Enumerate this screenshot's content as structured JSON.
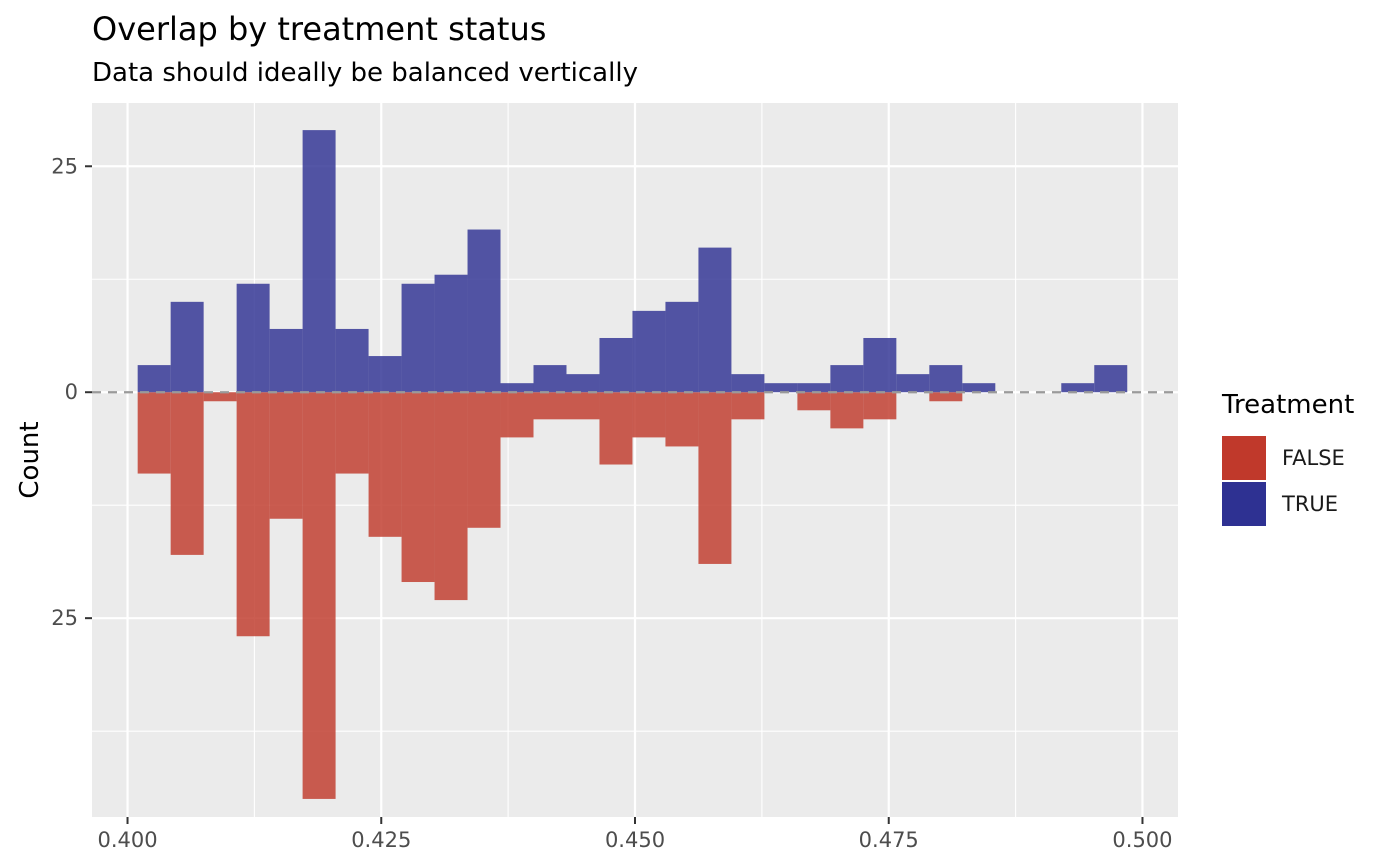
{
  "chart_data": {
    "type": "bar",
    "title": "Overlap by treatment status",
    "subtitle": "Data should ideally be balanced vertically",
    "xlabel": "",
    "ylabel": "Count",
    "xlim": [
      0.3965,
      0.5035
    ],
    "ylim": [
      -47,
      32
    ],
    "x_ticks": [
      0.4,
      0.425,
      0.45,
      0.475,
      0.5
    ],
    "x_tick_labels": [
      "0.400",
      "0.425",
      "0.450",
      "0.475",
      "0.500"
    ],
    "y_ticks": [
      25,
      0,
      -25
    ],
    "y_tick_labels": [
      "25",
      "0",
      "25"
    ],
    "grid": true,
    "reference_line": {
      "y": 0,
      "style": "dashed"
    },
    "bin_width": 0.00325,
    "bin_starts": [
      0.401,
      0.40425,
      0.4075,
      0.41075,
      0.414,
      0.41725,
      0.4205,
      0.42375,
      0.427,
      0.43025,
      0.4335,
      0.43675,
      0.44,
      0.44325,
      0.4465,
      0.44975,
      0.453,
      0.45625,
      0.4595,
      0.46275,
      0.466,
      0.46925,
      0.4725,
      0.47575,
      0.479,
      0.48225,
      0.4855,
      0.48875,
      0.492,
      0.49525
    ],
    "series": [
      {
        "name": "FALSE",
        "color": "#c0392b",
        "values": [
          -9,
          -18,
          -1,
          -27,
          -14,
          -45,
          -9,
          -16,
          -21,
          -23,
          -15,
          -5,
          -3,
          -3,
          -8,
          -5,
          -6,
          -19,
          -3,
          0,
          -2,
          -4,
          -3,
          0,
          -1,
          0,
          0,
          0,
          0,
          0
        ]
      },
      {
        "name": "TRUE",
        "color": "#2e3192",
        "values": [
          3,
          10,
          0,
          12,
          7,
          29,
          7,
          4,
          12,
          13,
          18,
          1,
          3,
          2,
          6,
          9,
          10,
          16,
          2,
          1,
          1,
          3,
          6,
          2,
          3,
          1,
          0,
          0,
          1,
          3
        ]
      }
    ],
    "legend": {
      "title": "Treatment",
      "position": "right"
    }
  },
  "colors": {
    "panel_background": "#ebebeb",
    "grid_major": "#ffffff",
    "false_fill": "#c0392b",
    "true_fill": "#2e3192"
  }
}
